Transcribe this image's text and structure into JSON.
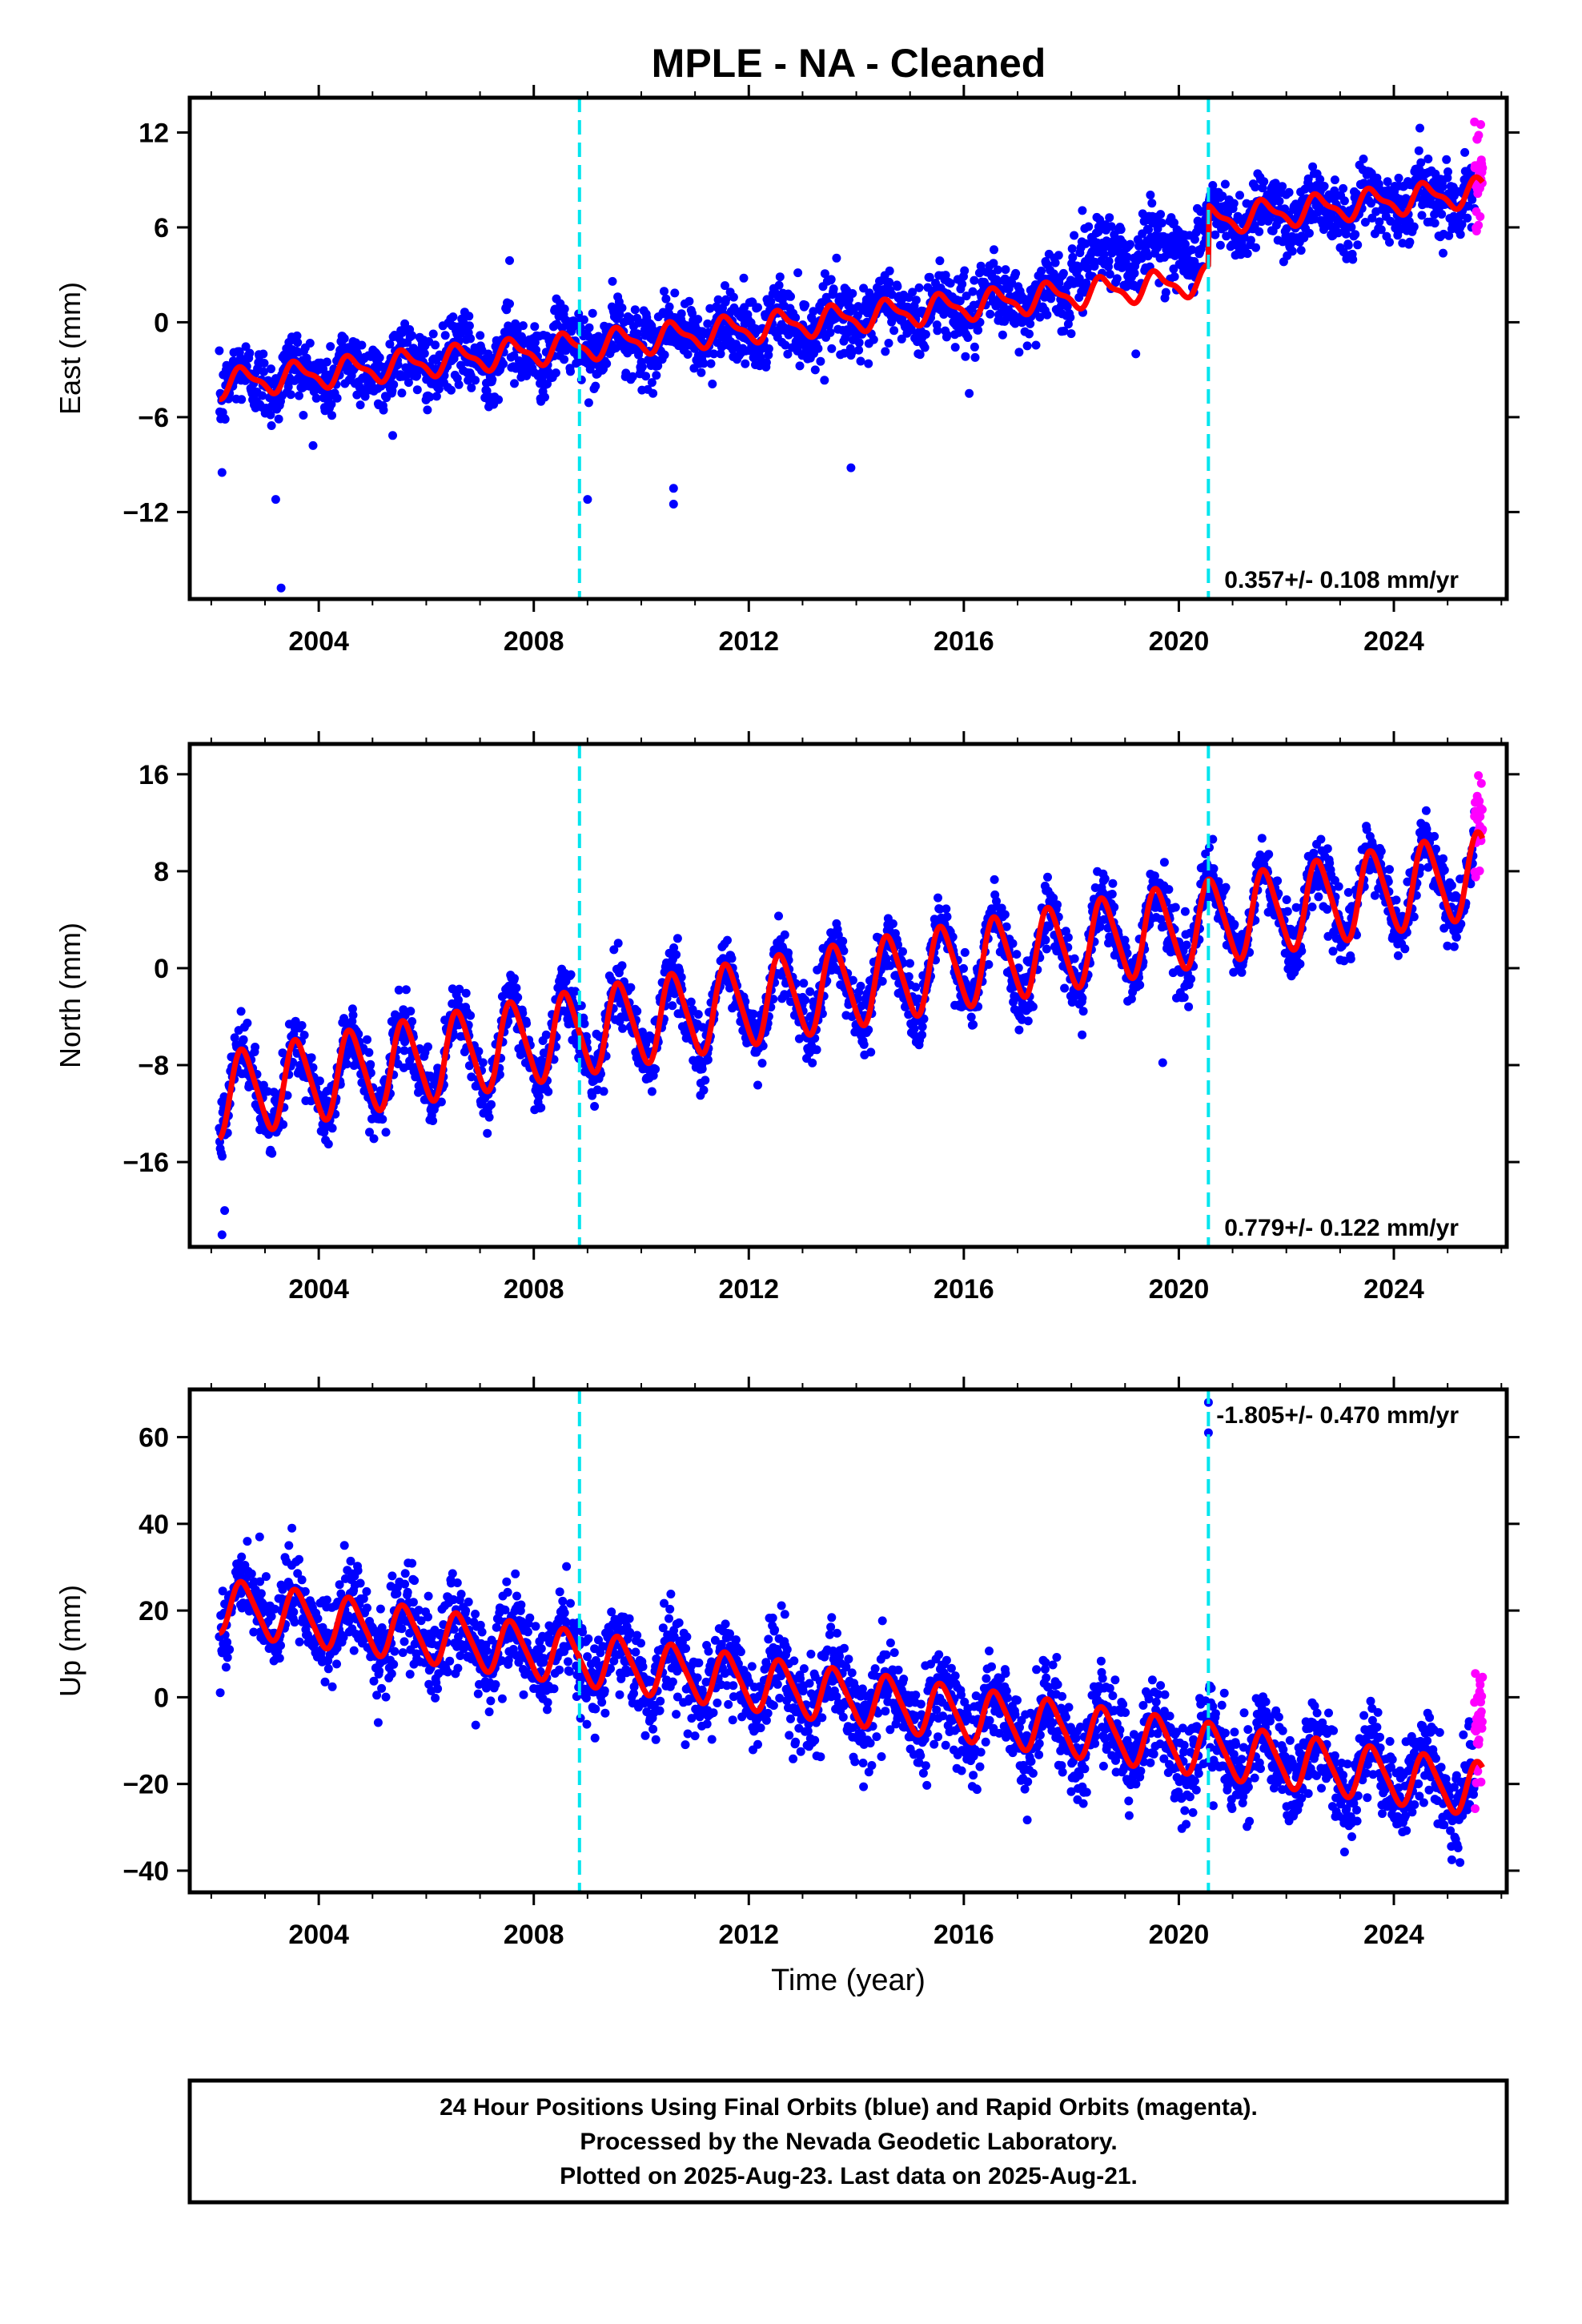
{
  "title": "MPLE  - NA - Cleaned",
  "footer_lines": [
    "24 Hour Positions Using Final Orbits (blue) and Rapid Orbits (magenta).",
    "Processed by the Nevada Geodetic Laboratory.",
    "Plotted on 2025-Aug-23. Last data on 2025-Aug-21."
  ],
  "colors": {
    "final_orbits": "#0000ff",
    "rapid_orbits": "#ff00ff",
    "model_fit": "#ff0000",
    "event_lines": "#00e5ee",
    "frame": "#000000"
  },
  "chart_data": [
    {
      "type": "scatter",
      "component": "east",
      "ylabel": "East (mm)",
      "xlabel": "",
      "xlim": [
        2001.6,
        2026.1
      ],
      "ylim": [
        -17.5,
        14.2
      ],
      "xticks": [
        2004,
        2008,
        2012,
        2016,
        2020,
        2024
      ],
      "yticks": [
        -12,
        -6,
        0,
        6,
        12
      ],
      "grid": false,
      "rate_label": "0.357+/- 0.108 mm/yr",
      "rate_label_position": "bottom-right",
      "event_lines_x": [
        2008.85,
        2020.55
      ],
      "model": {
        "trend_start": -3.9,
        "trend_rate": 0.357,
        "annual_amp": 0.8,
        "semiannual_amp": 0.3,
        "steps": [
          {
            "x": 2020.55,
            "dy": 3.8
          }
        ]
      },
      "final_orbits_range": [
        2002.15,
        2025.5
      ],
      "rapid_orbits_range": [
        2025.5,
        2025.65
      ],
      "scatter_sigma": 1.1,
      "scatter_offset_segments": [
        {
          "from": 2018.0,
          "to": 2020.55,
          "dy": 2.4
        }
      ],
      "outliers": [
        [
          2003.2,
          -11.2
        ],
        [
          2003.3,
          -16.8
        ],
        [
          2002.2,
          -9.5
        ],
        [
          2010.6,
          -11.5
        ],
        [
          2010.6,
          -10.5
        ],
        [
          2013.9,
          -9.2
        ],
        [
          2009.0,
          -11.2
        ],
        [
          2007.55,
          3.9
        ],
        [
          2016.1,
          -4.5
        ],
        [
          2019.2,
          -2.0
        ]
      ]
    },
    {
      "type": "scatter",
      "component": "north",
      "ylabel": "North (mm)",
      "xlabel": "",
      "xlim": [
        2001.6,
        2026.1
      ],
      "ylim": [
        -23.0,
        18.5
      ],
      "xticks": [
        2004,
        2008,
        2012,
        2016,
        2020,
        2024
      ],
      "yticks": [
        -16,
        -8,
        0,
        8,
        16
      ],
      "grid": false,
      "rate_label": "0.779+/- 0.122 mm/yr",
      "rate_label_position": "bottom-right",
      "event_lines_x": [
        2008.85,
        2020.55
      ],
      "model": {
        "trend_start": -10.5,
        "trend_rate": 0.779,
        "annual_amp": 3.4,
        "semiannual_amp": 0.5,
        "steps": []
      },
      "final_orbits_range": [
        2002.15,
        2025.5
      ],
      "rapid_orbits_range": [
        2025.5,
        2025.65
      ],
      "scatter_sigma": 1.3,
      "scatter_offset_segments": [],
      "outliers": [
        [
          2002.2,
          -22.0
        ],
        [
          2002.25,
          -20.0
        ],
        [
          2011.1,
          -10.5
        ],
        [
          2019.7,
          -7.8
        ],
        [
          2018.2,
          -5.5
        ]
      ]
    },
    {
      "type": "scatter",
      "component": "up",
      "ylabel": "Up (mm)",
      "xlabel": "Time (year)",
      "xlim": [
        2001.6,
        2026.1
      ],
      "ylim": [
        -45,
        71
      ],
      "xticks": [
        2004,
        2008,
        2012,
        2016,
        2020,
        2024
      ],
      "yticks": [
        -40,
        -20,
        0,
        20,
        40,
        60
      ],
      "grid": false,
      "rate_label": "-1.805+/- 0.470 mm/yr",
      "rate_label_position": "top-right",
      "event_lines_x": [
        2008.85,
        2020.55
      ],
      "model": {
        "trend_start": 21.0,
        "trend_rate": -1.805,
        "annual_amp": 6.0,
        "semiannual_amp": 1.0,
        "steps": []
      },
      "final_orbits_range": [
        2002.15,
        2025.5
      ],
      "rapid_orbits_range": [
        2025.5,
        2025.65
      ],
      "scatter_sigma": 5.0,
      "scatter_offset_segments": [],
      "outliers": [
        [
          2020.55,
          68
        ],
        [
          2020.55,
          61
        ],
        [
          2003.5,
          39
        ],
        [
          2002.9,
          37
        ]
      ]
    }
  ]
}
